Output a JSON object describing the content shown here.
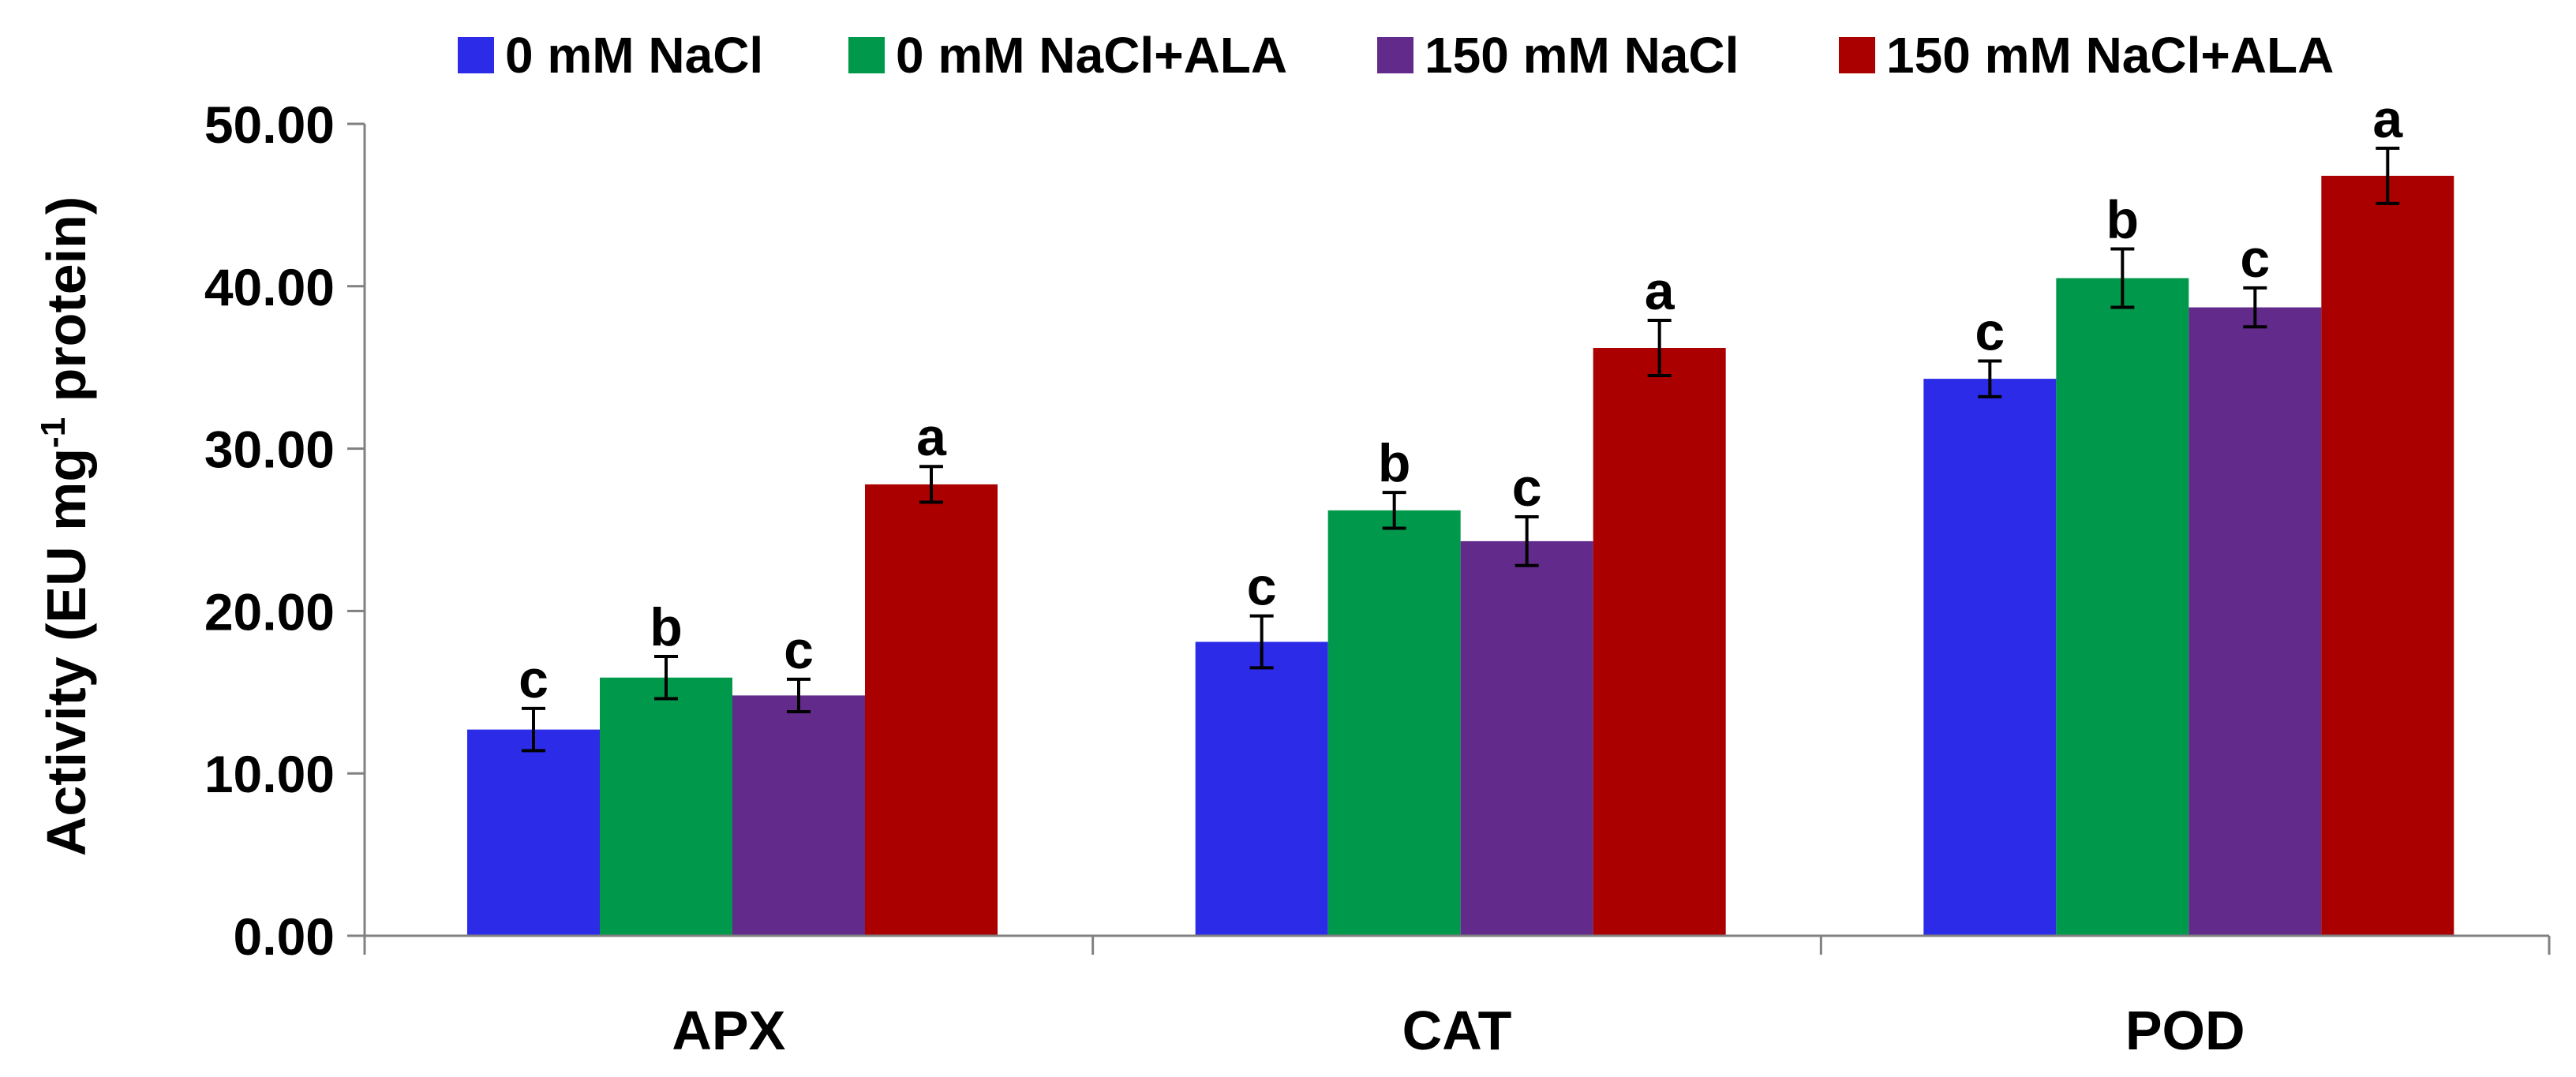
{
  "chart_data": {
    "type": "bar",
    "title": "",
    "xlabel": "",
    "ylabel": "Activity (EU mg-1 protein)",
    "ylabel_parts": {
      "before": "Activity (EU mg",
      "sup": "-1",
      "after": " protein)"
    },
    "ylim": [
      0,
      50
    ],
    "yticks": [
      0,
      10,
      20,
      30,
      40,
      50
    ],
    "ytick_labels": [
      "0.00",
      "10.00",
      "20.00",
      "30.00",
      "40.00",
      "50.00"
    ],
    "categories": [
      "APX",
      "CAT",
      "POD"
    ],
    "legend_position": "top",
    "grid": false,
    "series": [
      {
        "name": "0 mM NaCl",
        "color": "#2B2BE8",
        "values": [
          12.7,
          18.1,
          34.3
        ],
        "errors": [
          1.3,
          1.6,
          1.1
        ],
        "labels": [
          "c",
          "c",
          "c"
        ]
      },
      {
        "name": "0 mM NaCl+ALA",
        "color": "#00994C",
        "values": [
          15.9,
          26.2,
          40.5
        ],
        "errors": [
          1.3,
          1.1,
          1.8
        ],
        "labels": [
          "b",
          "b",
          "b"
        ]
      },
      {
        "name": "150 mM NaCl",
        "color": "#622A8A",
        "values": [
          14.8,
          24.3,
          38.7
        ],
        "errors": [
          1.0,
          1.5,
          1.2
        ],
        "labels": [
          "c",
          "c",
          "c"
        ]
      },
      {
        "name": "150 mM NaCl+ALA",
        "color": "#AA0000",
        "values": [
          27.8,
          36.2,
          46.8
        ],
        "errors": [
          1.1,
          1.7,
          1.7
        ],
        "labels": [
          "a",
          "a",
          "a"
        ]
      }
    ]
  }
}
